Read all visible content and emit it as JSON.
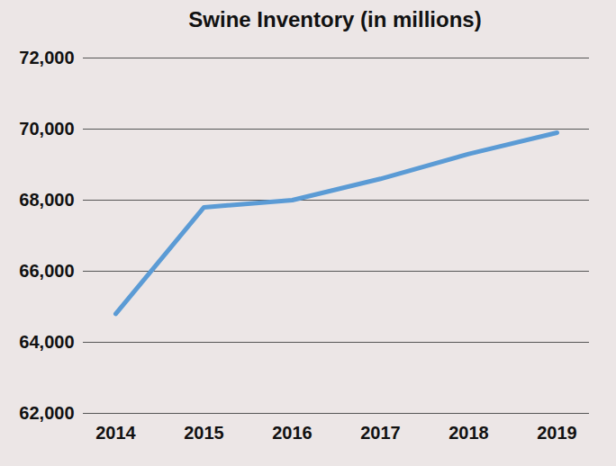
{
  "chart_data": {
    "type": "line",
    "title": "Swine Inventory (in millions)",
    "categories": [
      "2014",
      "2015",
      "2016",
      "2017",
      "2018",
      "2019"
    ],
    "values": [
      64800,
      67800,
      68000,
      68600,
      69300,
      69900
    ],
    "color": "#5b9bd5",
    "ylim": [
      62000,
      72000
    ],
    "yticks": [
      {
        "value": 62000,
        "label": "62,000"
      },
      {
        "value": 64000,
        "label": "64,000"
      },
      {
        "value": 66000,
        "label": "66,000"
      },
      {
        "value": 68000,
        "label": "68,000"
      },
      {
        "value": 70000,
        "label": "70,000"
      },
      {
        "value": 72000,
        "label": "72,000"
      }
    ],
    "grid": true
  }
}
